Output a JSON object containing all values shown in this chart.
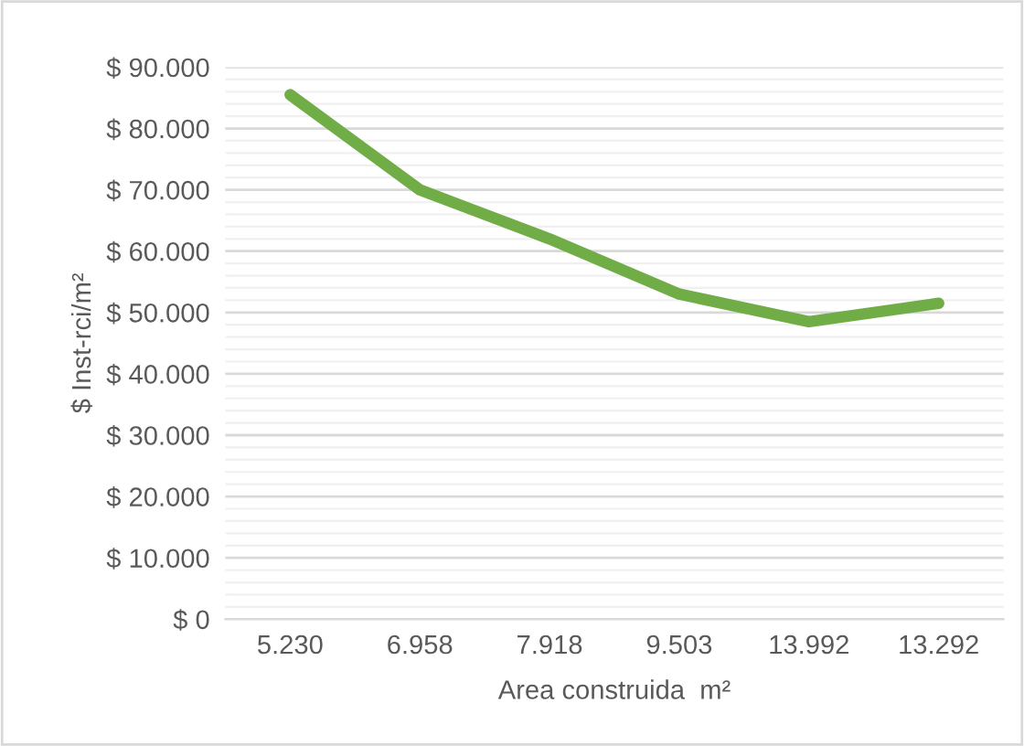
{
  "chart_data": {
    "type": "line",
    "xlabel": "Area construida  m²",
    "ylabel": "$ Inst-rci/m²",
    "categories": [
      "5.230",
      "6.958",
      "7.918",
      "9.503",
      "13.992",
      "13.292"
    ],
    "series": [
      {
        "color": "#70ad47",
        "values": [
          85500,
          70000,
          62000,
          53000,
          48500,
          51500
        ]
      }
    ],
    "ylim": [
      0,
      90000
    ],
    "yticks": [
      {
        "value": 0,
        "label": "$ 0"
      },
      {
        "value": 10000,
        "label": "$ 10.000"
      },
      {
        "value": 20000,
        "label": "$ 20.000"
      },
      {
        "value": 30000,
        "label": "$ 30.000"
      },
      {
        "value": 40000,
        "label": "$ 40.000"
      },
      {
        "value": 50000,
        "label": "$ 50.000"
      },
      {
        "value": 60000,
        "label": "$ 60.000"
      },
      {
        "value": 70000,
        "label": "$ 70.000"
      },
      {
        "value": 80000,
        "label": "$ 80.000"
      },
      {
        "value": 90000,
        "label": "$ 90.000"
      }
    ],
    "grid": "y",
    "legend": false,
    "marker": "none",
    "line_style": "solid"
  }
}
